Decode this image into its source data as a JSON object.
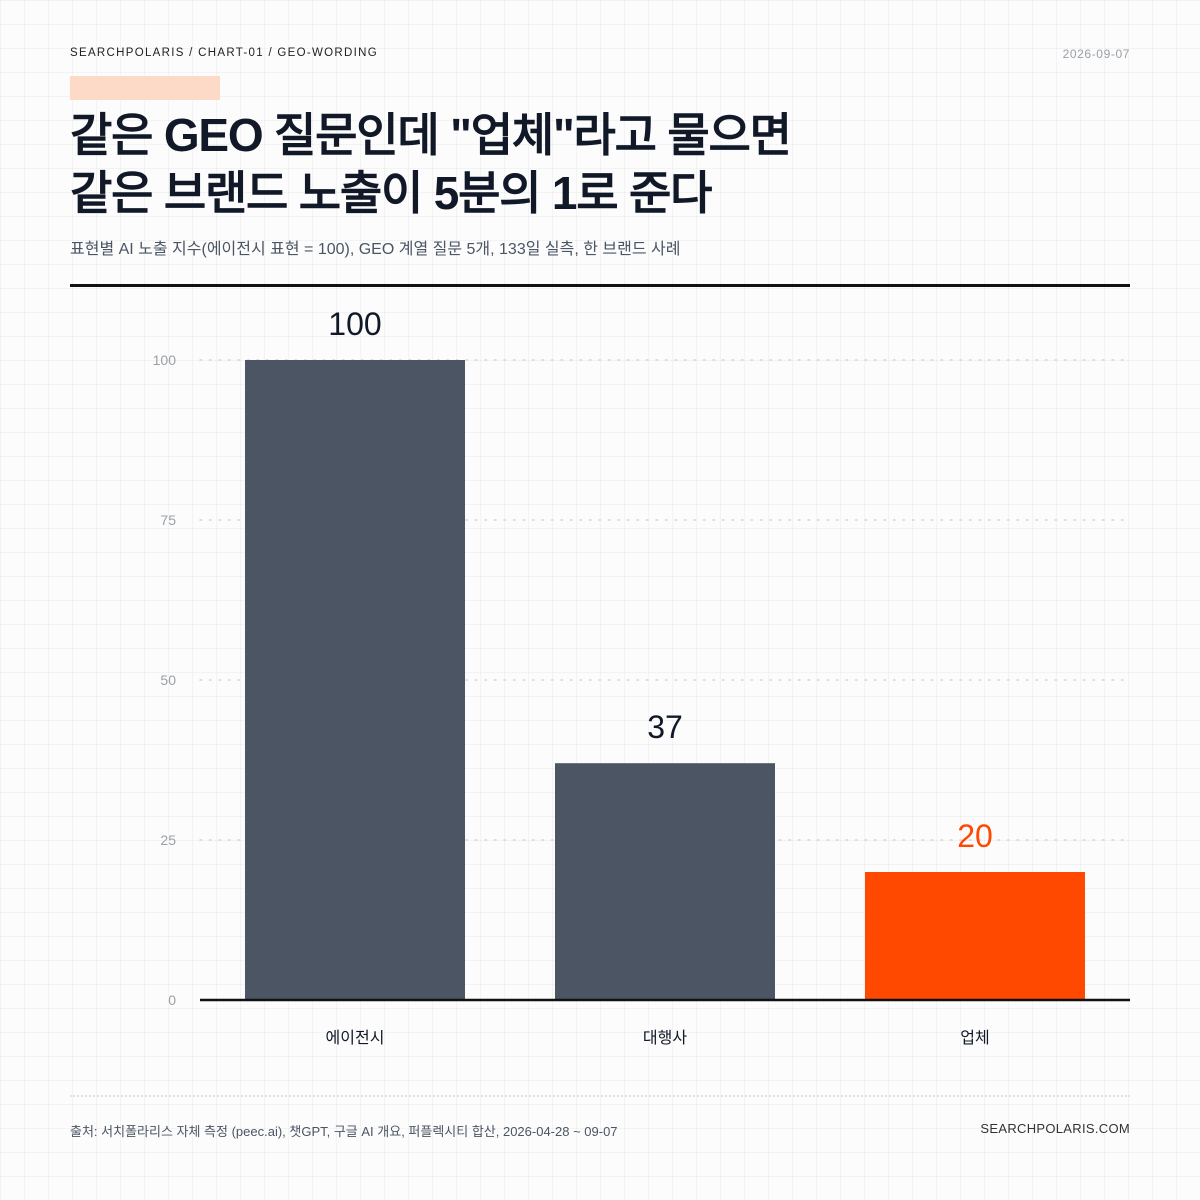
{
  "header": {
    "breadcrumb": "SEARCHPOLARIS / CHART-01 / GEO-WORDING",
    "date": "2026-09-07",
    "title_line1": "같은 GEO 질문인데 \"업체\"라고 물으면",
    "title_line2": "같은 브랜드 노출이 5분의 1로 준다",
    "subtitle": "표현별 AI 노출 지수(에이전시 표현 = 100), GEO 계열 질문 5개, 133일 실측, 한 브랜드 사례"
  },
  "chart_data": {
    "type": "bar",
    "categories": [
      "에이전시",
      "대행사",
      "업체"
    ],
    "values": [
      100,
      37,
      20
    ],
    "value_labels": [
      "100",
      "37",
      "20"
    ],
    "yticks": [
      "0",
      "25",
      "50",
      "75",
      "100"
    ],
    "ytick_values": [
      0,
      25,
      50,
      75,
      100
    ],
    "ylim": [
      0,
      100
    ],
    "colors": [
      "#4b5563",
      "#4b5563",
      "#ff4800"
    ],
    "label_colors": [
      "#111827",
      "#111827",
      "#ff4800"
    ],
    "grid": true
  },
  "footer": {
    "source": "출처: 서치폴라리스 자체 측정 (peec.ai), 챗GPT, 구글 AI 개요, 퍼플렉시티 합산, 2026-04-28 ~ 09-07",
    "site": "SEARCHPOLARIS.COM"
  }
}
